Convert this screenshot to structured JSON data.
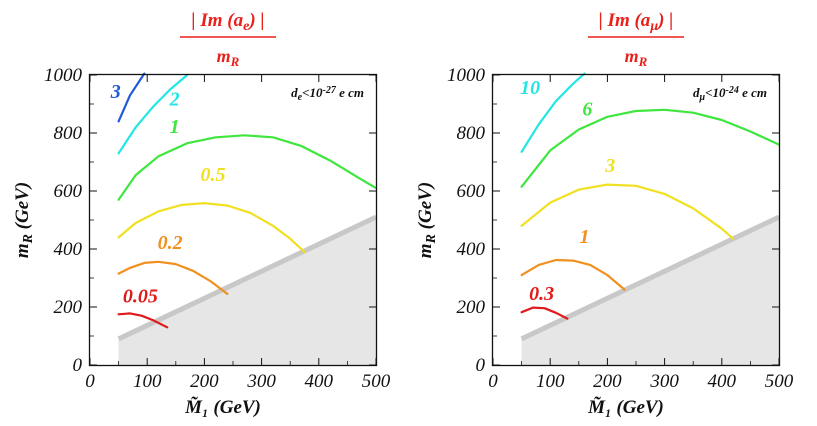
{
  "chart_data": [
    {
      "type": "line",
      "title": {
        "numerator": "| Im (a_e) |",
        "denominator": "m_R"
      },
      "xlabel": "M̃₁ (GeV)",
      "ylabel": "m_R (GeV)",
      "xlim": [
        0,
        500
      ],
      "ylim": [
        0,
        1000
      ],
      "xticks": [
        "0",
        "100",
        "200",
        "300",
        "400",
        "500"
      ],
      "yticks": [
        "0",
        "200",
        "400",
        "600",
        "800",
        "1000"
      ],
      "annotation": "d_e<10^-27 e cm",
      "excluded_region": {
        "polygon": [
          [
            50,
            0
          ],
          [
            500,
            0
          ],
          [
            500,
            510
          ],
          [
            50,
            90
          ]
        ],
        "color": "#e6e6e6",
        "edge_color": "#c8c8c8"
      },
      "series": [
        {
          "label": "3",
          "color": "#1f5ad8",
          "label_at": [
            45,
            920
          ],
          "x": [
            50,
            70,
            95
          ],
          "y": [
            840,
            930,
            1005
          ]
        },
        {
          "label": "2",
          "color": "#22e6e6",
          "label_at": [
            148,
            895
          ],
          "x": [
            50,
            80,
            110,
            140,
            170
          ],
          "y": [
            730,
            820,
            890,
            950,
            1000
          ]
        },
        {
          "label": "1",
          "color": "#3ee63e",
          "label_at": [
            148,
            800
          ],
          "x": [
            50,
            80,
            120,
            170,
            220,
            270,
            320,
            370,
            420,
            470,
            500
          ],
          "y": [
            570,
            655,
            720,
            765,
            785,
            792,
            785,
            755,
            705,
            645,
            610
          ]
        },
        {
          "label": "0.5",
          "color": "#f0e020",
          "label_at": [
            215,
            635
          ],
          "x": [
            50,
            80,
            120,
            160,
            200,
            240,
            280,
            320,
            350,
            375
          ],
          "y": [
            440,
            490,
            530,
            552,
            558,
            550,
            525,
            480,
            435,
            390
          ]
        },
        {
          "label": "0.2",
          "color": "#f0901e",
          "label_at": [
            140,
            400
          ],
          "x": [
            50,
            70,
            95,
            120,
            150,
            180,
            210,
            240
          ],
          "y": [
            315,
            335,
            352,
            356,
            348,
            325,
            290,
            245
          ]
        },
        {
          "label": "0.05",
          "color": "#e01a1a",
          "label_at": [
            88,
            215
          ],
          "x": [
            50,
            70,
            90,
            110,
            135
          ],
          "y": [
            175,
            178,
            170,
            155,
            130
          ]
        }
      ]
    },
    {
      "type": "line",
      "title": {
        "numerator": "| Im (a_μ) |",
        "denominator": "m_R"
      },
      "xlabel": "M̃₁ (GeV)",
      "ylabel": "m_R (GeV)",
      "xlim": [
        0,
        500
      ],
      "ylim": [
        0,
        1000
      ],
      "xticks": [
        "0",
        "100",
        "200",
        "300",
        "400",
        "500"
      ],
      "yticks": [
        "0",
        "200",
        "400",
        "600",
        "800",
        "1000"
      ],
      "annotation": "d_μ<10^-24 e cm",
      "excluded_region": {
        "polygon": [
          [
            50,
            0
          ],
          [
            500,
            0
          ],
          [
            500,
            510
          ],
          [
            50,
            90
          ]
        ],
        "color": "#e6e6e6",
        "edge_color": "#c8c8c8"
      },
      "series": [
        {
          "label": "10",
          "color": "#22e6e6",
          "label_at": [
            65,
            935
          ],
          "x": [
            50,
            80,
            110,
            140,
            160
          ],
          "y": [
            735,
            830,
            910,
            970,
            1005
          ]
        },
        {
          "label": "6",
          "color": "#3ee63e",
          "label_at": [
            165,
            860
          ],
          "x": [
            50,
            100,
            150,
            200,
            250,
            300,
            350,
            400,
            450,
            500
          ],
          "y": [
            615,
            740,
            812,
            856,
            876,
            880,
            870,
            845,
            805,
            760
          ]
        },
        {
          "label": "3",
          "color": "#f0e020",
          "label_at": [
            205,
            665
          ],
          "x": [
            50,
            100,
            150,
            200,
            250,
            300,
            350,
            400,
            420
          ],
          "y": [
            480,
            560,
            605,
            622,
            618,
            590,
            540,
            470,
            435
          ]
        },
        {
          "label": "1",
          "color": "#f0901e",
          "label_at": [
            160,
            420
          ],
          "x": [
            50,
            80,
            110,
            140,
            170,
            200,
            230
          ],
          "y": [
            310,
            345,
            362,
            360,
            345,
            310,
            260
          ]
        },
        {
          "label": "0.3",
          "color": "#e01a1a",
          "label_at": [
            85,
            225
          ],
          "x": [
            50,
            70,
            90,
            110,
            130
          ],
          "y": [
            182,
            198,
            196,
            180,
            160
          ]
        }
      ]
    }
  ]
}
